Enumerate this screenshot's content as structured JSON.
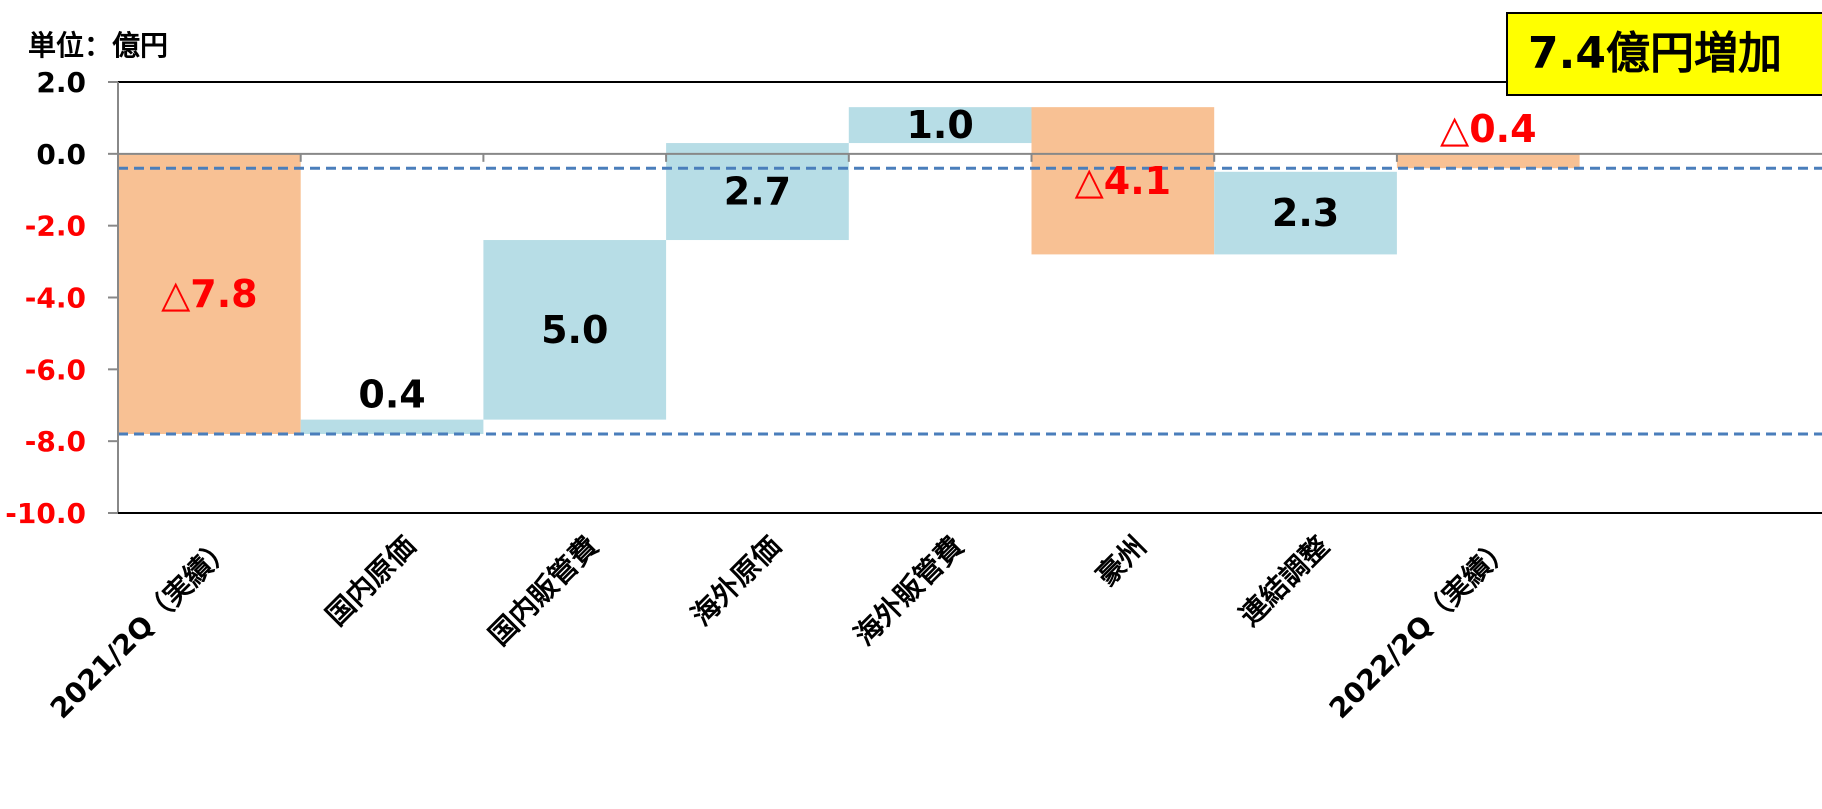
{
  "unit_label": "単位：億円",
  "callout": "7.4億円増加",
  "colors": {
    "negative_fill": "#f8c194",
    "positive_fill": "#b7dde6",
    "negative_text": "#ff0000",
    "positive_text": "#000000",
    "axis": "#000000",
    "reference_line": "#4a7ebb"
  },
  "chart_data": {
    "type": "bar",
    "subtype": "waterfall",
    "title": "",
    "xlabel": "",
    "ylabel": "",
    "ylim": [
      -10,
      2
    ],
    "yticks": [
      {
        "value": 2,
        "label": "2.0"
      },
      {
        "value": 0,
        "label": "0.0"
      },
      {
        "value": -2,
        "label": "-2.0"
      },
      {
        "value": -4,
        "label": "-4.0"
      },
      {
        "value": -6,
        "label": "-6.0"
      },
      {
        "value": -8,
        "label": "-8.0"
      },
      {
        "value": -10,
        "label": "-10.0"
      }
    ],
    "categories": [
      "2021/2Q（実績）",
      "国内原価",
      "国内販管費",
      "海外原価",
      "海外販管費",
      "豪州",
      "連結調整",
      "2022/2Q（実績）"
    ],
    "bars": [
      {
        "category": "2021/2Q（実績）",
        "start": 0,
        "end": -7.8,
        "label": "△7.8",
        "kind": "negative"
      },
      {
        "category": "国内原価",
        "start": -7.8,
        "end": -7.4,
        "label": "0.4",
        "kind": "positive"
      },
      {
        "category": "国内販管費",
        "start": -7.4,
        "end": -2.4,
        "label": "5.0",
        "kind": "positive"
      },
      {
        "category": "海外原価",
        "start": -2.4,
        "end": 0.3,
        "label": "2.7",
        "kind": "positive"
      },
      {
        "category": "海外販管費",
        "start": 0.3,
        "end": 1.3,
        "label": "1.0",
        "kind": "positive"
      },
      {
        "category": "豪州",
        "start": 1.3,
        "end": -2.8,
        "label": "△4.1",
        "kind": "negative"
      },
      {
        "category": "連結調整",
        "start": -2.8,
        "end": -0.5,
        "label": "2.3",
        "kind": "positive"
      },
      {
        "category": "2022/2Q（実績）",
        "start": 0,
        "end": -0.4,
        "label": "△0.4",
        "kind": "negative"
      }
    ],
    "reference_lines": [
      -0.4,
      -7.8
    ],
    "grid": false,
    "legend": "none"
  }
}
